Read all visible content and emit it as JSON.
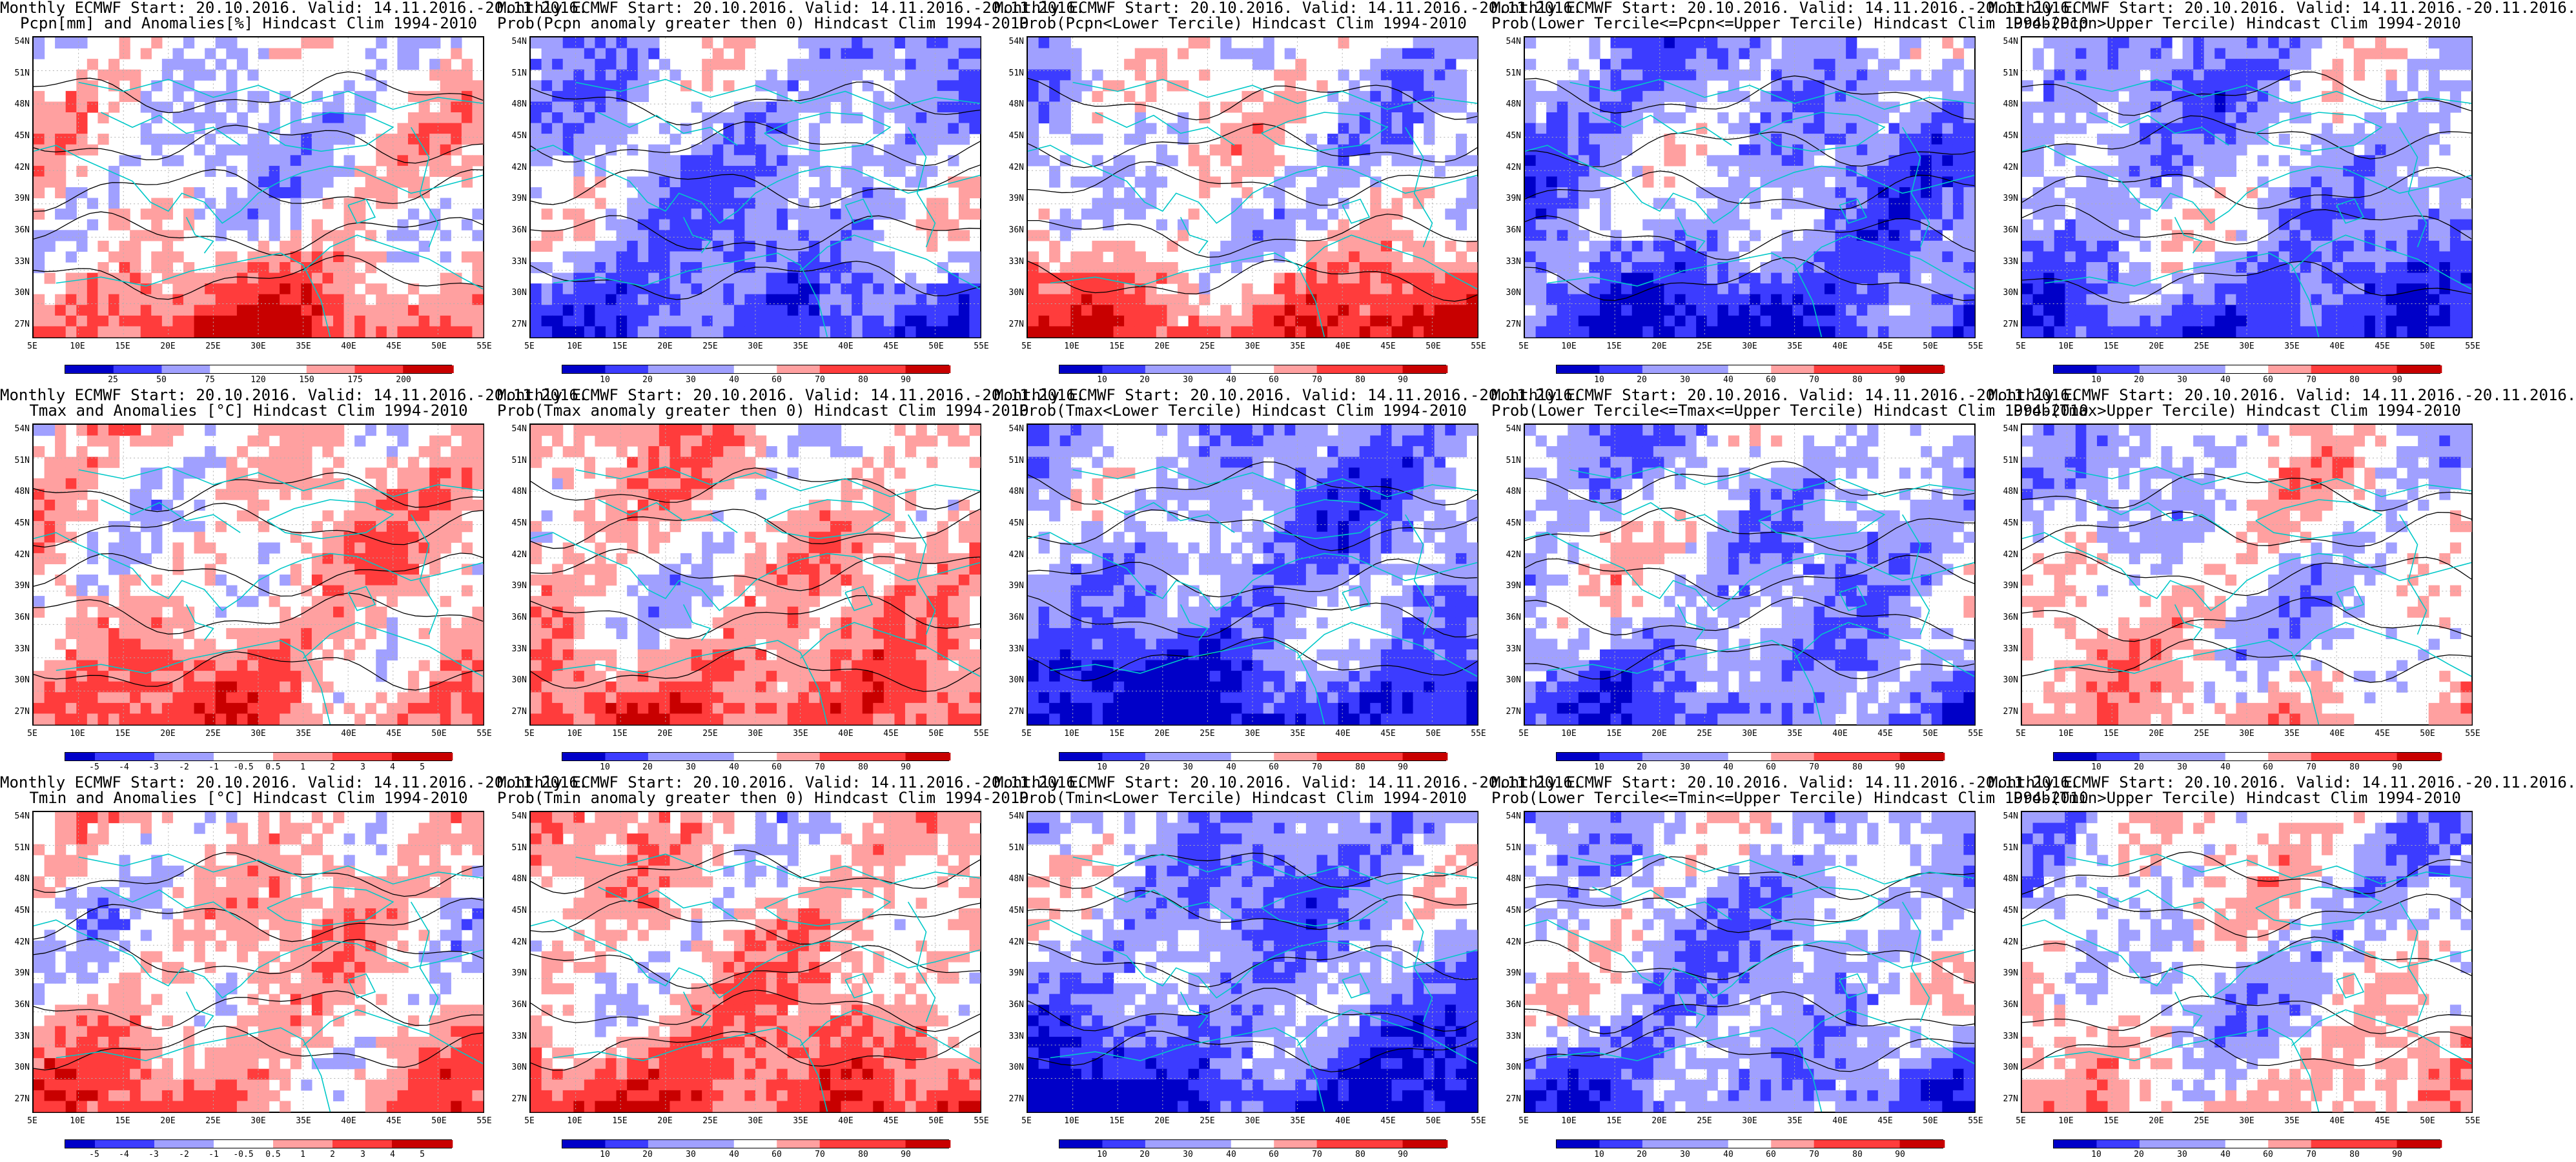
{
  "ui": {
    "lat_labels": [
      "54N",
      "51N",
      "48N",
      "45N",
      "42N",
      "39N",
      "36N",
      "33N",
      "30N",
      "27N"
    ],
    "lon_labels": [
      "5E",
      "10E",
      "15E",
      "20E",
      "25E",
      "30E",
      "35E",
      "40E",
      "45E",
      "50E",
      "55E"
    ],
    "colors": {
      "deep_blue": "#0000c8",
      "mid_blue": "#3c3cff",
      "light_blue": "#a0a0ff",
      "neutral": "#ffffff",
      "light_red": "#ffa0a0",
      "mid_red": "#ff3c3c",
      "deep_red": "#c80000",
      "coast": "#00c8c8",
      "contour": "#000000"
    }
  },
  "panels": [
    {
      "title_line1": "Monthly ECMWF Start: 20.10.2016. Valid: 14.11.2016.-20.11.2016.",
      "title_line2": "Pcpn[mm] and Anomalies[%] Hindcast Clim 1994-2010",
      "field": "anomaly",
      "bias": -0.05,
      "south_bias": 0.9,
      "colorbar_labels": [
        "25",
        "50",
        "75",
        "120",
        "150",
        "175",
        "200"
      ]
    },
    {
      "title_line1": "Monthly ECMWF Start: 20.10.2016. Valid: 14.11.2016.-20.11.2016.",
      "title_line2": "Prob(Pcpn anomaly greater then 0) Hindcast Clim 1994-2010",
      "field": "probability",
      "bias": -0.45,
      "south_bias": -0.55,
      "colorbar_labels": [
        "10",
        "20",
        "30",
        "40",
        "60",
        "70",
        "80",
        "90"
      ]
    },
    {
      "title_line1": "Monthly ECMWF Start: 20.10.2016. Valid: 14.11.2016.-20.11.2016.",
      "title_line2": "Prob(Pcpn<Lower Tercile) Hindcast Clim 1994-2010",
      "field": "probability",
      "bias": -0.15,
      "south_bias": 1.1,
      "colorbar_labels": [
        "10",
        "20",
        "30",
        "40",
        "60",
        "70",
        "80",
        "90"
      ]
    },
    {
      "title_line1": "Monthly ECMWF Start: 20.10.2016. Valid: 14.11.2016.-20.11.2016.",
      "title_line2": "Prob(Lower Tercile<=Pcpn<=Upper Tercile) Hindcast Clim 1994-2010",
      "field": "probability",
      "bias": -0.6,
      "south_bias": -0.6,
      "colorbar_labels": [
        "10",
        "20",
        "30",
        "40",
        "60",
        "70",
        "80",
        "90"
      ]
    },
    {
      "title_line1": "Monthly ECMWF Start: 20.10.2016. Valid: 14.11.2016.-20.11.2016.",
      "title_line2": "Prob(Pcpn>Upper Tercile) Hindcast Clim 1994-2010",
      "field": "probability",
      "bias": -0.45,
      "south_bias": -0.6,
      "colorbar_labels": [
        "10",
        "20",
        "30",
        "40",
        "60",
        "70",
        "80",
        "90"
      ]
    },
    {
      "title_line1": "Monthly ECMWF Start: 20.10.2016. Valid: 14.11.2016.-20.11.2016.",
      "title_line2": "Tmax and Anomalies [°C] Hindcast Clim 1994-2010",
      "field": "anomaly",
      "bias": 0.25,
      "south_bias": 0.45,
      "colorbar_labels": [
        "-5",
        "-4",
        "-3",
        "-2",
        "-1",
        "-0.5",
        "0.5",
        "1",
        "2",
        "3",
        "4",
        "5"
      ]
    },
    {
      "title_line1": "Monthly ECMWF Start: 20.10.2016. Valid: 14.11.2016.-20.11.2016.",
      "title_line2": "Prob(Tmax anomaly greater then 0) Hindcast Clim 1994-2010",
      "field": "probability",
      "bias": 0.3,
      "south_bias": 0.6,
      "colorbar_labels": [
        "10",
        "20",
        "30",
        "40",
        "60",
        "70",
        "80",
        "90"
      ]
    },
    {
      "title_line1": "Monthly ECMWF Start: 20.10.2016. Valid: 14.11.2016.-20.11.2016.",
      "title_line2": "Prob(Tmax<Lower Tercile) Hindcast Clim 1994-2010",
      "field": "probability",
      "bias": -0.6,
      "south_bias": -0.75,
      "colorbar_labels": [
        "10",
        "20",
        "30",
        "40",
        "60",
        "70",
        "80",
        "90"
      ]
    },
    {
      "title_line1": "Monthly ECMWF Start: 20.10.2016. Valid: 14.11.2016.-20.11.2016.",
      "title_line2": "Prob(Lower Tercile<=Tmax<=Upper Tercile) Hindcast Clim 1994-2010",
      "field": "probability",
      "bias": -0.35,
      "south_bias": -0.45,
      "colorbar_labels": [
        "10",
        "20",
        "30",
        "40",
        "60",
        "70",
        "80",
        "90"
      ]
    },
    {
      "title_line1": "Monthly ECMWF Start: 20.10.2016. Valid: 14.11.2016.-20.11.2016.",
      "title_line2": "Prob(Tmax>Upper Tercile) Hindcast Clim 1994-2010",
      "field": "probability",
      "bias": -0.1,
      "south_bias": 0.35,
      "colorbar_labels": [
        "10",
        "20",
        "30",
        "40",
        "60",
        "70",
        "80",
        "90"
      ]
    },
    {
      "title_line1": "Monthly ECMWF Start: 20.10.2016. Valid: 14.11.2016.-20.11.2016.",
      "title_line2": "Tmin and Anomalies [°C] Hindcast Clim 1994-2010",
      "field": "anomaly",
      "bias": 0.2,
      "south_bias": 0.45,
      "colorbar_labels": [
        "-5",
        "-4",
        "-3",
        "-2",
        "-1",
        "-0.5",
        "0.5",
        "1",
        "2",
        "3",
        "4",
        "5"
      ]
    },
    {
      "title_line1": "Monthly ECMWF Start: 20.10.2016. Valid: 14.11.2016.-20.11.2016.",
      "title_line2": "Prob(Tmin anomaly greater then 0) Hindcast Clim 1994-2010",
      "field": "probability",
      "bias": 0.3,
      "south_bias": 0.7,
      "colorbar_labels": [
        "10",
        "20",
        "30",
        "40",
        "60",
        "70",
        "80",
        "90"
      ]
    },
    {
      "title_line1": "Monthly ECMWF Start: 20.10.2016. Valid: 14.11.2016.-20.11.2016.",
      "title_line2": "Prob(Tmin<Lower Tercile) Hindcast Clim 1994-2010",
      "field": "probability",
      "bias": -0.55,
      "south_bias": -0.8,
      "colorbar_labels": [
        "10",
        "20",
        "30",
        "40",
        "60",
        "70",
        "80",
        "90"
      ]
    },
    {
      "title_line1": "Monthly ECMWF Start: 20.10.2016. Valid: 14.11.2016.-20.11.2016.",
      "title_line2": "Prob(Lower Tercile<=Tmin<=Upper Tercile) Hindcast Clim 1994-2010",
      "field": "probability",
      "bias": -0.35,
      "south_bias": -0.45,
      "colorbar_labels": [
        "10",
        "20",
        "30",
        "40",
        "60",
        "70",
        "80",
        "90"
      ]
    },
    {
      "title_line1": "Monthly ECMWF Start: 20.10.2016. Valid: 14.11.2016.-20.11.2016.",
      "title_line2": "Prob(Tmin>Upper Tercile) Hindcast Clim 1994-2010",
      "field": "probability",
      "bias": -0.15,
      "south_bias": 0.4,
      "colorbar_labels": [
        "10",
        "20",
        "30",
        "40",
        "60",
        "70",
        "80",
        "90"
      ]
    }
  ]
}
